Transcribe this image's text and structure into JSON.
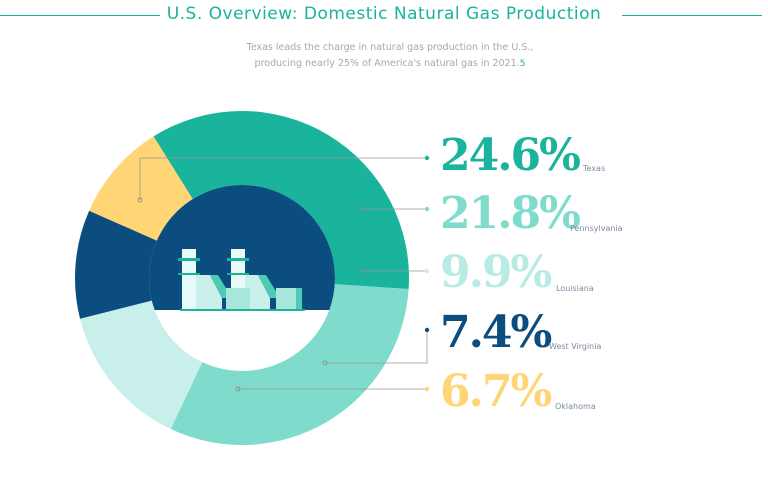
{
  "header": {
    "title": "U.S. Overview: Domestic Natural Gas Production",
    "subtitle_line1": "Texas leads the charge in natural gas production in the U.S.,",
    "subtitle_line2": "producing nearly 25% of America's natural gas in 2021.",
    "footnote": "5"
  },
  "chart_data": {
    "type": "pie",
    "style": "donut",
    "unit": "%",
    "categories": [
      "Texas",
      "Pennsylvania",
      "Louisiana",
      "West Virginia",
      "Oklahoma"
    ],
    "values": [
      24.6,
      21.8,
      9.9,
      7.4,
      6.7
    ],
    "labels": [
      "24.6%",
      "21.8%",
      "9.9%",
      "7.4%",
      "6.7%"
    ],
    "colors": [
      "#1ab39b",
      "#7fdbcc",
      "#c9efea",
      "#0a4d7e",
      "#ffd576"
    ],
    "center_icon": "power-plant-icon"
  }
}
